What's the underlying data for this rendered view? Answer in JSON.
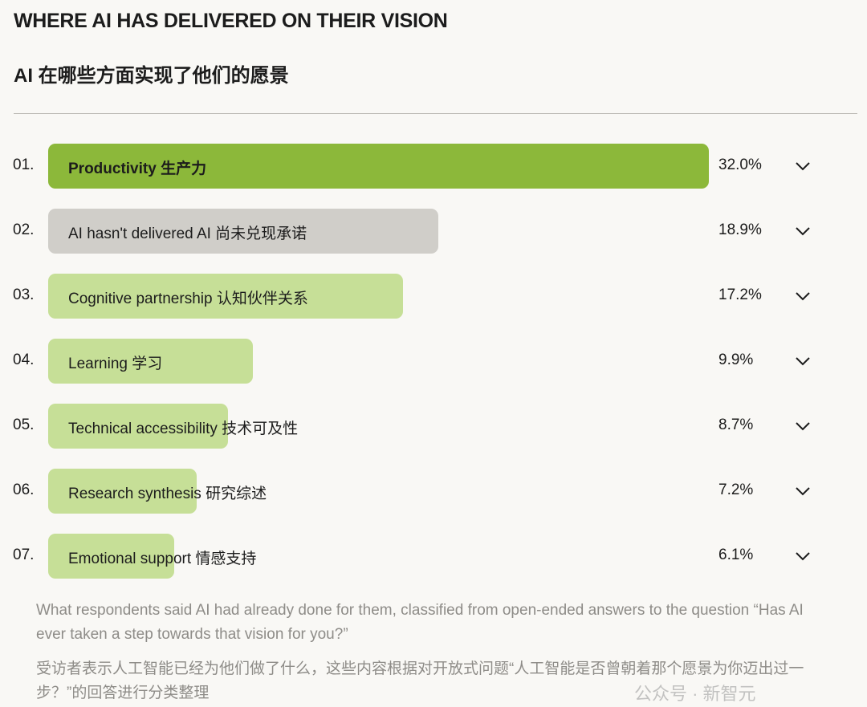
{
  "title": "WHERE AI HAS DELIVERED ON THEIR VISION",
  "subtitle": "AI 在哪些方面实现了他们的愿景",
  "chart_data": {
    "type": "bar",
    "orientation": "horizontal",
    "categories": [
      {
        "rank": "01.",
        "label": "Productivity  生产力",
        "value": 32.0,
        "pct": "32.0%",
        "color": "#8cb83a",
        "bold": true
      },
      {
        "rank": "02.",
        "label": "AI hasn't delivered  AI 尚未兑现承诺",
        "value": 18.9,
        "pct": "18.9%",
        "color": "#d0cec9",
        "bold": false
      },
      {
        "rank": "03.",
        "label": "Cognitive partnership  认知伙伴关系",
        "value": 17.2,
        "pct": "17.2%",
        "color": "#c6df97",
        "bold": false
      },
      {
        "rank": "04.",
        "label": "Learning  学习",
        "value": 9.9,
        "pct": "9.9%",
        "color": "#c6df97",
        "bold": false
      },
      {
        "rank": "05.",
        "label": "Technical accessibility  技术可及性",
        "value": 8.7,
        "pct": "8.7%",
        "color": "#c6df97",
        "bold": false
      },
      {
        "rank": "06.",
        "label": "Research synthesis  研究综述",
        "value": 7.2,
        "pct": "7.2%",
        "color": "#c6df97",
        "bold": false
      },
      {
        "rank": "07.",
        "label": "Emotional support  情感支持",
        "value": 6.1,
        "pct": "6.1%",
        "color": "#c6df97",
        "bold": false
      }
    ],
    "unit": "%"
  },
  "note_en": "What respondents said AI had already done for them, classified from open-ended answers to the question “Has AI ever taken a step towards that vision for you?”",
  "note_zh": "受访者表示人工智能已经为他们做了什么，这些内容根据对开放式问题“人工智能是否曾朝着那个愿景为你迈出过一步？”的回答进行分类整理",
  "watermark": "公众号 · 新智元"
}
